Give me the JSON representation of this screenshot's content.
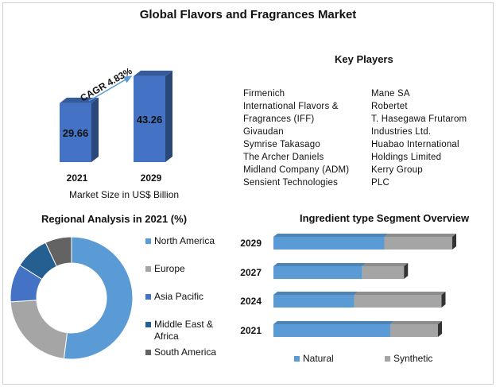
{
  "title": "Global Flavors and Fragrances Market",
  "market_size": {
    "caption": "Market Size in US$ Billion",
    "cagr": "CAGR 4.83%",
    "bar_color": "#4472c4"
  },
  "key_players": {
    "heading": "Key Players",
    "column1": [
      "Firmenich",
      "International Flavors &",
      "Fragrances (IFF)",
      "Givaudan",
      "Symrise Takasago",
      "The Archer Daniels",
      "Midland Company (ADM)",
      "Sensient Technologies"
    ],
    "column2": [
      "Mane SA",
      "Robertet",
      "T. Hasegawa Frutarom",
      "Industries Ltd.",
      "Huabao International",
      "Holdings Limited",
      "Kerry Group",
      "PLC"
    ]
  },
  "regional": {
    "heading": "Regional Analysis in 2021 (%)"
  },
  "ingredient": {
    "heading": "Ingredient type Segment Overview"
  },
  "chart_data": [
    {
      "type": "bar",
      "title": "",
      "categories": [
        "2021",
        "2029"
      ],
      "values": [
        29.66,
        43.26
      ],
      "xlabel": "Market Size in US$ Billion",
      "annotation": "CAGR 4.83%"
    },
    {
      "type": "pie",
      "title": "Regional Analysis in 2021 (%)",
      "categories": [
        "North America",
        "Europe",
        "Asia Pacific",
        "Middle East & Africa",
        "South America"
      ],
      "values": [
        52,
        22,
        10,
        9,
        7
      ],
      "colors": [
        "#5b9bd5",
        "#a5a5a5",
        "#4472c4",
        "#255e91",
        "#636363"
      ],
      "legend": "right"
    },
    {
      "type": "bar",
      "orientation": "horizontal",
      "stacked": true,
      "title": "Ingredient type Segment Overview",
      "categories": [
        "2029",
        "2027",
        "2024",
        "2021"
      ],
      "series": [
        {
          "name": "Natural",
          "values": [
            62,
            68,
            48,
            71
          ],
          "color": "#5b9bd5"
        },
        {
          "name": "Synthetic",
          "values": [
            38,
            32,
            52,
            29
          ],
          "color": "#a5a5a5"
        }
      ],
      "legend": "bottom"
    }
  ]
}
